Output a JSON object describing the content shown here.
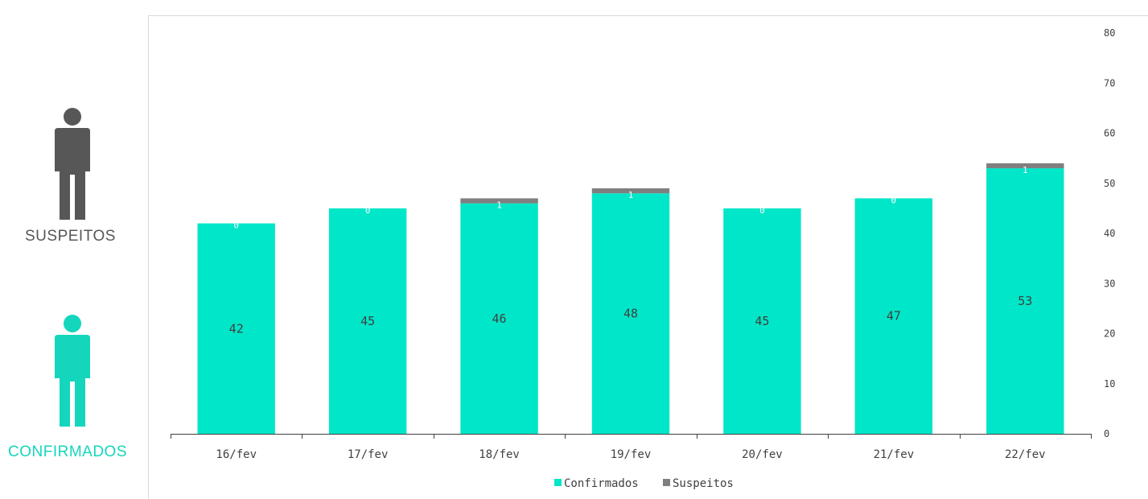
{
  "side_panel": {
    "suspects_label": "SUSPEITOS",
    "confirmed_label": "CONFIRMADOS",
    "suspects_icon": "person-icon",
    "confirmed_icon": "person-icon",
    "suspects_color": "#575757",
    "confirmed_color": "#14d6bd"
  },
  "chart_data": {
    "type": "bar",
    "stacked": true,
    "categories": [
      "16/fev",
      "17/fev",
      "18/fev",
      "19/fev",
      "20/fev",
      "21/fev",
      "22/fev"
    ],
    "series": [
      {
        "name": "Confirmados",
        "values": [
          42,
          45,
          46,
          48,
          45,
          47,
          53
        ],
        "color": "#00e6c8"
      },
      {
        "name": "Suspeitos",
        "values": [
          0,
          0,
          1,
          1,
          0,
          0,
          1
        ],
        "color": "#7f7f7f"
      }
    ],
    "y_axis": {
      "side": "right",
      "ylim": [
        0,
        80
      ],
      "ticks": [
        0,
        10,
        20,
        30,
        40,
        50,
        60,
        70,
        80
      ]
    },
    "grid": false,
    "legend": {
      "position": "bottom",
      "entries": [
        "Confirmados",
        "Suspeitos"
      ]
    },
    "title": "",
    "xlabel": "",
    "ylabel": ""
  }
}
